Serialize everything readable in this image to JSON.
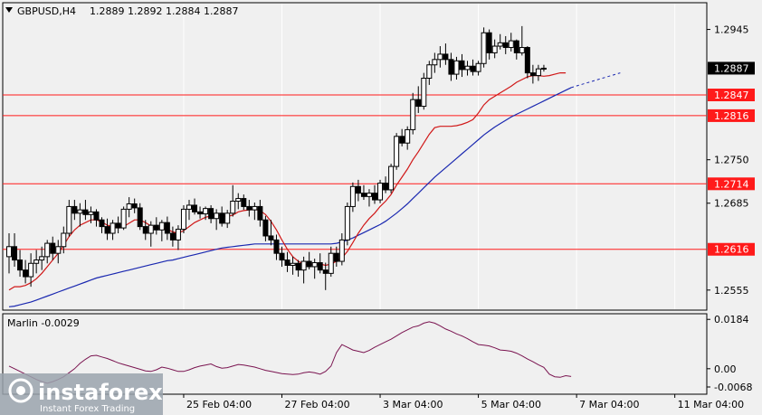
{
  "header": {
    "symbol": "GBPUSD,H4",
    "ohlc": "1.2889 1.2892 1.2884 1.2887"
  },
  "indicator": {
    "name": "Marlin -0.0029"
  },
  "logo": {
    "brand": "instaforex",
    "tagline": "Instant Forex Trading"
  },
  "colors": {
    "background": "#f0f0f0",
    "grid": "#ffffff",
    "candle": "#000000",
    "fast_ma": "#d01818",
    "slow_ma": "#1a28b0",
    "level_line": "#ff1a1a",
    "oscillator": "#7a1450",
    "price_label_bg": "#ff1a1a",
    "current_price_bg": "#000000"
  },
  "chart_data": [
    {
      "type": "candlestick",
      "symbol": "GBPUSD",
      "timeframe": "H4",
      "y_range": [
        1.2525,
        1.2985
      ],
      "y_ticks": [
        1.2555,
        1.2685,
        1.275,
        1.2945
      ],
      "x_tick_labels": [
        "25 Feb 04:00",
        "27 Feb 04:00",
        "3 Mar 04:00",
        "5 Mar 04:00",
        "7 Mar 04:00",
        "11 Mar 04:00"
      ],
      "x_tick_index": [
        32,
        50,
        68,
        86,
        104,
        122
      ],
      "current_price": "1.2887",
      "levels": [
        {
          "value": 1.2847,
          "label": "1.2847"
        },
        {
          "value": 1.2816,
          "label": "1.2816"
        },
        {
          "value": 1.2714,
          "label": "1.2714"
        },
        {
          "value": 1.2616,
          "label": "1.2616"
        }
      ],
      "ohlc": [
        [
          1.2605,
          1.264,
          1.258,
          1.262
        ],
        [
          1.262,
          1.264,
          1.259,
          1.26
        ],
        [
          1.26,
          1.2615,
          1.2575,
          1.2585
        ],
        [
          1.2585,
          1.26,
          1.2565,
          1.2575
        ],
        [
          1.2575,
          1.261,
          1.256,
          1.2595
        ],
        [
          1.2595,
          1.2615,
          1.258,
          1.26
        ],
        [
          1.26,
          1.262,
          1.2585,
          1.2605
        ],
        [
          1.2605,
          1.263,
          1.2595,
          1.2625
        ],
        [
          1.2625,
          1.2635,
          1.26,
          1.261
        ],
        [
          1.261,
          1.263,
          1.2595,
          1.262
        ],
        [
          1.262,
          1.265,
          1.261,
          1.264
        ],
        [
          1.264,
          1.269,
          1.2635,
          1.268
        ],
        [
          1.268,
          1.269,
          1.266,
          1.267
        ],
        [
          1.267,
          1.2685,
          1.265,
          1.2675
        ],
        [
          1.2675,
          1.269,
          1.266,
          1.2668
        ],
        [
          1.2668,
          1.268,
          1.2655,
          1.2672
        ],
        [
          1.2672,
          1.2676,
          1.265,
          1.266
        ],
        [
          1.266,
          1.2664,
          1.264,
          1.265
        ],
        [
          1.265,
          1.2662,
          1.263,
          1.264
        ],
        [
          1.264,
          1.266,
          1.263,
          1.2655
        ],
        [
          1.2655,
          1.2665,
          1.264,
          1.2648
        ],
        [
          1.2648,
          1.268,
          1.2645,
          1.2676
        ],
        [
          1.2676,
          1.2694,
          1.2664,
          1.2684
        ],
        [
          1.2684,
          1.2692,
          1.267,
          1.2678
        ],
        [
          1.2678,
          1.2685,
          1.2645,
          1.265
        ],
        [
          1.265,
          1.266,
          1.263,
          1.264
        ],
        [
          1.264,
          1.2658,
          1.262,
          1.2652
        ],
        [
          1.2652,
          1.2664,
          1.2638,
          1.2645
        ],
        [
          1.2645,
          1.266,
          1.2628,
          1.2656
        ],
        [
          1.2656,
          1.2665,
          1.263,
          1.264
        ],
        [
          1.264,
          1.265,
          1.262,
          1.263
        ],
        [
          1.263,
          1.2652,
          1.2615,
          1.2646
        ],
        [
          1.2646,
          1.2682,
          1.264,
          1.2676
        ],
        [
          1.2676,
          1.269,
          1.266,
          1.2682
        ],
        [
          1.2682,
          1.2692,
          1.2668,
          1.2672
        ],
        [
          1.2672,
          1.268,
          1.2662,
          1.2669
        ],
        [
          1.2669,
          1.268,
          1.266,
          1.2677
        ],
        [
          1.2677,
          1.2682,
          1.2655,
          1.2662
        ],
        [
          1.2662,
          1.2676,
          1.2645,
          1.267
        ],
        [
          1.267,
          1.268,
          1.265,
          1.2655
        ],
        [
          1.2655,
          1.2675,
          1.2648,
          1.267
        ],
        [
          1.267,
          1.2712,
          1.2665,
          1.2688
        ],
        [
          1.2688,
          1.27,
          1.2676,
          1.2692
        ],
        [
          1.2692,
          1.2698,
          1.2675,
          1.268
        ],
        [
          1.268,
          1.269,
          1.2665,
          1.2675
        ],
        [
          1.2675,
          1.2686,
          1.266,
          1.268
        ],
        [
          1.268,
          1.269,
          1.265,
          1.266
        ],
        [
          1.266,
          1.2666,
          1.2628,
          1.2636
        ],
        [
          1.2636,
          1.266,
          1.2622,
          1.263
        ],
        [
          1.263,
          1.2638,
          1.26,
          1.261
        ],
        [
          1.261,
          1.262,
          1.259,
          1.26
        ],
        [
          1.26,
          1.2612,
          1.2582,
          1.2592
        ],
        [
          1.2592,
          1.2605,
          1.2578,
          1.2595
        ],
        [
          1.2595,
          1.26,
          1.2575,
          1.2585
        ],
        [
          1.2585,
          1.2605,
          1.2565,
          1.2598
        ],
        [
          1.2598,
          1.2612,
          1.2586,
          1.259
        ],
        [
          1.259,
          1.2602,
          1.2572,
          1.2596
        ],
        [
          1.2596,
          1.261,
          1.258,
          1.2585
        ],
        [
          1.2585,
          1.2596,
          1.2555,
          1.258
        ],
        [
          1.258,
          1.262,
          1.2575,
          1.261
        ],
        [
          1.261,
          1.262,
          1.259,
          1.2598
        ],
        [
          1.2598,
          1.264,
          1.2592,
          1.263
        ],
        [
          1.263,
          1.2686,
          1.2622,
          1.268
        ],
        [
          1.268,
          1.2716,
          1.2672,
          1.271
        ],
        [
          1.271,
          1.272,
          1.2688,
          1.27
        ],
        [
          1.27,
          1.2712,
          1.269,
          1.2695
        ],
        [
          1.2695,
          1.2706,
          1.268,
          1.27
        ],
        [
          1.27,
          1.2712,
          1.2684,
          1.269
        ],
        [
          1.269,
          1.272,
          1.2685,
          1.2715
        ],
        [
          1.2715,
          1.2725,
          1.27,
          1.2705
        ],
        [
          1.2705,
          1.2744,
          1.27,
          1.274
        ],
        [
          1.274,
          1.279,
          1.2735,
          1.2785
        ],
        [
          1.2785,
          1.2796,
          1.277,
          1.2775
        ],
        [
          1.2775,
          1.28,
          1.2765,
          1.2795
        ],
        [
          1.2795,
          1.285,
          1.2788,
          1.284
        ],
        [
          1.284,
          1.286,
          1.282,
          1.283
        ],
        [
          1.283,
          1.288,
          1.2825,
          1.2872
        ],
        [
          1.2872,
          1.2898,
          1.2862,
          1.2892
        ],
        [
          1.2892,
          1.291,
          1.288,
          1.29
        ],
        [
          1.29,
          1.292,
          1.2888,
          1.2908
        ],
        [
          1.2908,
          1.2924,
          1.2892,
          1.29
        ],
        [
          1.29,
          1.291,
          1.2868,
          1.2878
        ],
        [
          1.2878,
          1.2904,
          1.287,
          1.2898
        ],
        [
          1.2898,
          1.2908,
          1.2874,
          1.2885
        ],
        [
          1.2885,
          1.2898,
          1.2876,
          1.289
        ],
        [
          1.289,
          1.29,
          1.2876,
          1.2882
        ],
        [
          1.2882,
          1.2898,
          1.2876,
          1.2894
        ],
        [
          1.2894,
          1.2948,
          1.2888,
          1.294
        ],
        [
          1.294,
          1.2945,
          1.29,
          1.291
        ],
        [
          1.291,
          1.293,
          1.2902,
          1.292
        ],
        [
          1.292,
          1.2938,
          1.2915,
          1.2925
        ],
        [
          1.2925,
          1.2935,
          1.2908,
          1.2918
        ],
        [
          1.2918,
          1.294,
          1.2912,
          1.2928
        ],
        [
          1.2928,
          1.293,
          1.29,
          1.291
        ],
        [
          1.291,
          1.295,
          1.2906,
          1.2918
        ],
        [
          1.2918,
          1.292,
          1.2872,
          1.288
        ],
        [
          1.288,
          1.2892,
          1.2864,
          1.2876
        ],
        [
          1.2876,
          1.2892,
          1.2868,
          1.2886
        ],
        [
          1.2886,
          1.2892,
          1.2882,
          1.2887
        ]
      ],
      "fast_ma": [
        1.2555,
        1.256,
        1.256,
        1.2562,
        1.2566,
        1.2572,
        1.258,
        1.259,
        1.26,
        1.261,
        1.2622,
        1.2635,
        1.2645,
        1.2652,
        1.2656,
        1.266,
        1.266,
        1.2657,
        1.2652,
        1.265,
        1.2648,
        1.265,
        1.2655,
        1.266,
        1.266,
        1.2656,
        1.2651,
        1.2648,
        1.2647,
        1.2646,
        1.2642,
        1.264,
        1.2644,
        1.265,
        1.2656,
        1.266,
        1.2664,
        1.2666,
        1.2667,
        1.2666,
        1.2665,
        1.2667,
        1.2672,
        1.2674,
        1.2675,
        1.2676,
        1.2674,
        1.2668,
        1.2658,
        1.2645,
        1.263,
        1.2616,
        1.2605,
        1.2598,
        1.2594,
        1.2593,
        1.2594,
        1.2594,
        1.2592,
        1.2594,
        1.2598,
        1.2603,
        1.2613,
        1.2626,
        1.264,
        1.2652,
        1.2662,
        1.267,
        1.268,
        1.2688,
        1.2698,
        1.2712,
        1.2724,
        1.2736,
        1.275,
        1.2762,
        1.2775,
        1.2788,
        1.2798,
        1.28,
        1.28,
        1.28,
        1.2801,
        1.2803,
        1.2806,
        1.281,
        1.282,
        1.2832,
        1.284,
        1.2845,
        1.285,
        1.2855,
        1.286,
        1.2866,
        1.287,
        1.2874,
        1.2876,
        1.2876,
        1.2875,
        1.2876,
        1.2878,
        1.288,
        1.288
      ],
      "slow_ma": [
        1.253,
        1.2531,
        1.2533,
        1.2535,
        1.2537,
        1.254,
        1.2543,
        1.2546,
        1.2549,
        1.2552,
        1.2555,
        1.2558,
        1.2561,
        1.2564,
        1.2567,
        1.257,
        1.2573,
        1.2575,
        1.2577,
        1.2579,
        1.2581,
        1.2583,
        1.2585,
        1.2587,
        1.2589,
        1.2591,
        1.2593,
        1.2595,
        1.2597,
        1.2599,
        1.26,
        1.2602,
        1.2604,
        1.2606,
        1.2608,
        1.261,
        1.2612,
        1.2614,
        1.2616,
        1.2618,
        1.2619,
        1.262,
        1.2621,
        1.2622,
        1.2623,
        1.2624,
        1.2624,
        1.2624,
        1.2624,
        1.2624,
        1.2624,
        1.2624,
        1.2624,
        1.2624,
        1.2624,
        1.2624,
        1.2624,
        1.2624,
        1.2624,
        1.2624,
        1.2625,
        1.2627,
        1.263,
        1.2633,
        1.2637,
        1.2641,
        1.2645,
        1.2649,
        1.2653,
        1.2658,
        1.2664,
        1.267,
        1.2677,
        1.2684,
        1.2692,
        1.27,
        1.2708,
        1.2716,
        1.2724,
        1.2731,
        1.2738,
        1.2745,
        1.2752,
        1.2759,
        1.2766,
        1.2773,
        1.278,
        1.2787,
        1.2793,
        1.2799,
        1.2804,
        1.2809,
        1.2814,
        1.2818,
        1.2822,
        1.2826,
        1.283,
        1.2834,
        1.2838,
        1.2842,
        1.2846,
        1.285,
        1.2854,
        1.2858
      ],
      "slow_ma_projection_end": 1.288
    },
    {
      "type": "line",
      "name": "Marlin",
      "y_range": [
        -0.0095,
        0.0205
      ],
      "y_ticks": [
        0.0184,
        0.0,
        -0.0068
      ],
      "y_tick_labels": [
        "0.0184",
        "0.00",
        "-0.0068"
      ],
      "values": [
        0.001,
        0.0,
        -0.001,
        -0.002,
        -0.003,
        -0.004,
        -0.0048,
        -0.0054,
        -0.0048,
        -0.004,
        -0.003,
        -0.0015,
        0.0,
        0.002,
        0.0035,
        0.0048,
        0.005,
        0.0044,
        0.0038,
        0.003,
        0.0022,
        0.0016,
        0.001,
        0.0004,
        -0.0002,
        -0.0008,
        -0.001,
        -0.0004,
        0.0006,
        0.0002,
        -0.0004,
        -0.001,
        -0.001,
        -0.0004,
        0.0004,
        0.001,
        0.0014,
        0.0018,
        0.0008,
        0.0002,
        0.0004,
        0.001,
        0.0016,
        0.0014,
        0.001,
        0.0006,
        0.0,
        -0.0006,
        -0.001,
        -0.0014,
        -0.0018,
        -0.002,
        -0.0022,
        -0.002,
        -0.0015,
        -0.0012,
        -0.0015,
        -0.002,
        -0.001,
        0.001,
        0.006,
        0.009,
        0.008,
        0.007,
        0.0065,
        0.006,
        0.0068,
        0.008,
        0.009,
        0.01,
        0.011,
        0.0122,
        0.0135,
        0.0145,
        0.0155,
        0.016,
        0.017,
        0.0175,
        0.017,
        0.016,
        0.0148,
        0.014,
        0.013,
        0.0122,
        0.0112,
        0.01,
        0.009,
        0.0088,
        0.0085,
        0.0078,
        0.007,
        0.0068,
        0.0065,
        0.0058,
        0.0048,
        0.0036,
        0.0026,
        0.0015,
        0.0005,
        -0.002,
        -0.003,
        -0.0032,
        -0.0026,
        -0.0029
      ]
    }
  ]
}
